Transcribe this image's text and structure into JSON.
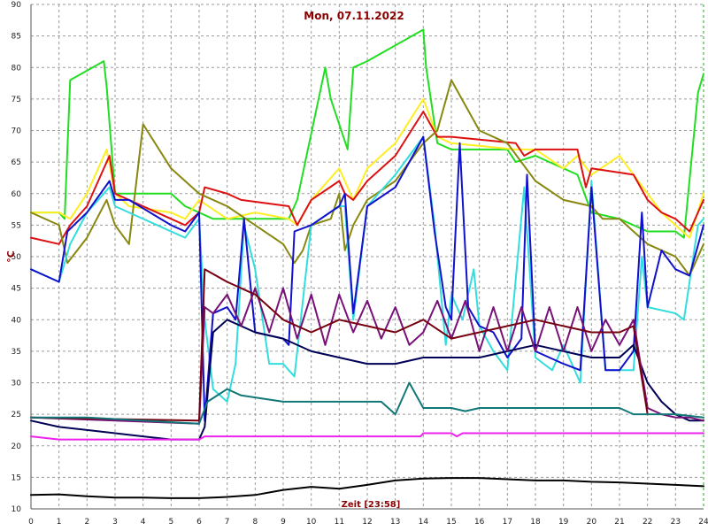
{
  "chart_data": {
    "type": "line",
    "title": "Mon, 07.11.2022",
    "ylabel": "°C",
    "xlabel": "Zeit [23:58]",
    "xlim": [
      0,
      24
    ],
    "ylim": [
      10,
      90
    ],
    "x_ticks": [
      0,
      1,
      2,
      3,
      4,
      5,
      6,
      7,
      8,
      9,
      10,
      11,
      12,
      13,
      14,
      15,
      16,
      17,
      18,
      19,
      20,
      21,
      22,
      23,
      24
    ],
    "y_ticks": [
      10,
      15,
      20,
      25,
      30,
      35,
      40,
      45,
      50,
      55,
      60,
      65,
      70,
      75,
      80,
      85,
      90
    ],
    "grid": true,
    "legend": "none",
    "series": [
      {
        "color": "#22dd22",
        "x": [
          0,
          1,
          1.2,
          1.4,
          2.6,
          2.7,
          3,
          3.5,
          5,
          5.5,
          6,
          6.5,
          7.5,
          9.2,
          9.5,
          10.5,
          10.7,
          11.3,
          11.5,
          12,
          14,
          14.1,
          14.5,
          15,
          17,
          17.3,
          18,
          18.5,
          19.5,
          20,
          21,
          21.5,
          22,
          23,
          23.3,
          23.8,
          24
        ],
        "y": [
          57,
          57,
          56,
          78,
          81,
          77,
          60,
          60,
          60,
          58,
          57,
          56,
          56,
          56,
          59,
          80,
          75,
          67,
          80,
          81,
          86,
          80,
          68,
          67,
          67,
          65,
          66,
          65,
          63,
          57,
          56,
          55,
          54,
          54,
          53,
          76,
          79
        ]
      },
      {
        "color": "#ffee22",
        "x": [
          0,
          1,
          1.4,
          2,
          2.7,
          3,
          3.5,
          5,
          5.5,
          6,
          7,
          8,
          9.2,
          9.5,
          10,
          11,
          11.2,
          11.5,
          12,
          13,
          14,
          14.5,
          15,
          17.3,
          18,
          19,
          19.5,
          20,
          21,
          22,
          22.5,
          23,
          23.5,
          24
        ],
        "y": [
          57,
          57,
          56,
          60,
          67,
          60,
          58,
          57,
          56,
          59,
          56,
          57,
          56,
          55,
          59,
          64,
          62,
          59,
          64,
          68,
          75,
          69,
          68,
          67,
          67,
          64,
          66,
          63,
          66,
          60,
          57,
          55,
          53,
          60
        ]
      },
      {
        "color": "#dd1111",
        "x": [
          0,
          1,
          1.4,
          2,
          2.8,
          3,
          3.5,
          5,
          5.5,
          6,
          6.2,
          7,
          7.5,
          9.2,
          9.5,
          10,
          11,
          11.2,
          11.5,
          12,
          13,
          14,
          14.5,
          15,
          17.3,
          17.6,
          18,
          19.5,
          19.8,
          20,
          21.5,
          22,
          22.5,
          23,
          23.5,
          24
        ],
        "y": [
          53,
          52,
          55,
          58,
          66,
          60,
          59,
          56,
          55,
          57,
          61,
          60,
          59,
          58,
          55,
          59,
          62,
          60,
          59,
          62,
          66,
          73,
          69,
          69,
          68,
          66,
          67,
          67,
          61,
          64,
          63,
          59,
          57,
          56,
          54,
          59
        ]
      },
      {
        "color": "#888811",
        "x": [
          0,
          1,
          1.3,
          2,
          2.7,
          3,
          3.5,
          4,
          5,
          6,
          7,
          8,
          9,
          9.4,
          9.7,
          10,
          10.7,
          11,
          11.2,
          11.5,
          12,
          13,
          14,
          14.5,
          15,
          15.5,
          16,
          17,
          18,
          19,
          20,
          20.4,
          21,
          22,
          23,
          23.5,
          24
        ],
        "y": [
          57,
          55,
          49,
          53,
          59,
          55,
          52,
          71,
          64,
          60,
          58,
          55,
          52,
          49,
          51,
          55,
          56,
          60,
          51,
          55,
          59,
          62,
          68,
          70,
          78,
          74,
          70,
          68,
          62,
          59,
          58,
          56,
          56,
          52,
          50,
          47,
          52
        ]
      },
      {
        "color": "#33dddd",
        "x": [
          0,
          1,
          1.4,
          2,
          2.8,
          3,
          3.5,
          5,
          5.5,
          6,
          6.2,
          6.5,
          7,
          7.3,
          7.6,
          8,
          8.5,
          9,
          9.2,
          9.4,
          10,
          11,
          11.2,
          11.5,
          12,
          13,
          14,
          14.4,
          14.8,
          15,
          15.4,
          15.8,
          16,
          16.5,
          17,
          17.6,
          18,
          18.6,
          19,
          19.6,
          20,
          20.5,
          21,
          21.5,
          21.8,
          22,
          23,
          23.3,
          23.8,
          24
        ],
        "y": [
          48,
          46,
          52,
          57,
          61,
          58,
          57,
          54,
          53,
          56,
          40,
          29,
          27,
          33,
          55,
          48,
          33,
          33,
          32,
          31,
          55,
          58,
          58,
          40,
          58,
          63,
          69,
          55,
          36,
          44,
          40,
          48,
          39,
          35,
          32,
          61,
          34,
          32,
          36,
          30,
          62,
          32,
          32,
          32,
          50,
          42,
          41,
          40,
          55,
          56
        ]
      },
      {
        "color": "#1111cc",
        "x": [
          0,
          0.5,
          1,
          1.3,
          2,
          2.8,
          3,
          3.5,
          5,
          5.5,
          6,
          6.2,
          6.5,
          7,
          7.3,
          7.6,
          8,
          9,
          9.2,
          9.4,
          10,
          11,
          11.2,
          11.5,
          12,
          13,
          14,
          14.4,
          14.8,
          15,
          15.3,
          15.6,
          16,
          16.5,
          17,
          17.5,
          17.7,
          18,
          18.5,
          19,
          19.6,
          20,
          20.5,
          21,
          21.5,
          21.8,
          22,
          22.5,
          23,
          23.5,
          24
        ],
        "y": [
          48,
          47,
          46,
          54,
          57,
          62,
          59,
          59,
          55,
          54,
          57,
          24,
          41,
          42,
          40,
          56,
          38,
          37,
          36,
          54,
          55,
          58,
          60,
          41,
          58,
          61,
          69,
          54,
          42,
          40,
          68,
          42,
          39,
          38,
          34,
          37,
          63,
          35,
          34,
          33,
          32,
          61,
          32,
          32,
          35,
          57,
          42,
          51,
          48,
          47,
          55
        ]
      },
      {
        "color": "#000055",
        "x": [
          0,
          1,
          2,
          3,
          4,
          5,
          6,
          6.2,
          6.5,
          7,
          8,
          9,
          10,
          11,
          12,
          13,
          14,
          15,
          16,
          17,
          18,
          19,
          20,
          21,
          21.5,
          22,
          22.5,
          23,
          23.5,
          24
        ],
        "y": [
          24,
          23,
          22.5,
          22,
          21.5,
          21,
          21,
          23,
          38,
          40,
          38,
          37,
          35,
          34,
          33,
          33,
          34,
          34,
          34,
          35,
          36,
          35,
          34,
          34,
          36,
          30,
          27,
          25,
          24,
          24
        ]
      },
      {
        "color": "#771177",
        "x": [
          0,
          6,
          6.2,
          6.5,
          7,
          7.5,
          8,
          8.5,
          9,
          9.5,
          10,
          10.5,
          11,
          11.5,
          12,
          12.5,
          13,
          13.5,
          14,
          14.5,
          15,
          15.5,
          16,
          16.5,
          17,
          17.5,
          18,
          18.5,
          19,
          19.5,
          20,
          20.5,
          21,
          21.5,
          22,
          22.5,
          23,
          23.5,
          24
        ],
        "y": [
          24.5,
          23.5,
          42,
          41,
          44,
          39,
          45,
          38,
          45,
          37,
          44,
          36,
          44,
          38,
          43,
          37,
          42,
          36,
          38,
          43,
          37,
          43,
          35,
          42,
          35,
          42,
          35,
          42,
          35,
          42,
          35,
          40,
          36,
          40,
          26,
          25,
          24.5,
          24.5,
          24
        ]
      },
      {
        "color": "#770011",
        "x": [
          0,
          6,
          6.2,
          7,
          8,
          9,
          10,
          11,
          12,
          13,
          14,
          15,
          16,
          17,
          18,
          19,
          20,
          21,
          21.5,
          22
        ],
        "y": [
          24.5,
          24,
          48,
          46,
          44,
          40,
          38,
          40,
          39,
          38,
          40,
          37,
          38,
          39,
          40,
          39,
          38,
          38,
          39,
          25
        ]
      },
      {
        "color": "#117777",
        "x": [
          0,
          2,
          4,
          6,
          6.3,
          7,
          7.5,
          9,
          10,
          11,
          12,
          12.5,
          13,
          13.5,
          14,
          15,
          15.5,
          16,
          17,
          18,
          19,
          20,
          21,
          21.5,
          22,
          23,
          24
        ],
        "y": [
          24.5,
          24.5,
          24,
          23.5,
          27,
          29,
          28,
          27,
          27,
          27,
          27,
          27,
          25,
          30,
          26,
          26,
          25.5,
          26,
          26,
          26,
          26,
          26,
          26,
          25,
          25,
          25,
          24.5
        ]
      },
      {
        "color": "#ee22ee",
        "x": [
          0,
          1,
          2,
          4,
          6,
          6.2,
          7,
          9,
          12,
          13,
          13.9,
          14,
          15,
          15.2,
          15.4,
          16,
          18,
          20,
          21,
          22,
          23,
          24
        ],
        "y": [
          21.5,
          21,
          21,
          21,
          21,
          21.5,
          21.5,
          21.5,
          21.5,
          21.5,
          21.5,
          22,
          22,
          21.5,
          22,
          22,
          22,
          22,
          22,
          22,
          22,
          22
        ]
      },
      {
        "color": "#000000",
        "x": [
          0,
          1,
          2,
          3,
          4,
          5,
          6,
          7,
          8,
          9,
          10,
          11,
          12,
          13,
          14,
          15,
          16,
          17,
          18,
          19,
          20,
          21,
          22,
          23,
          24
        ],
        "y": [
          12.2,
          12.3,
          12,
          11.8,
          11.8,
          11.7,
          11.7,
          11.9,
          12.2,
          13,
          13.5,
          13.2,
          13.8,
          14.5,
          14.8,
          14.9,
          14.9,
          14.7,
          14.5,
          14.5,
          14.3,
          14.2,
          14,
          13.8,
          13.6
        ]
      }
    ]
  }
}
